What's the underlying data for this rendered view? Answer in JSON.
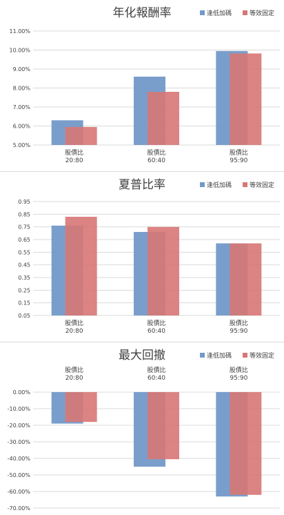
{
  "legend": {
    "series1": "逢低加碼",
    "series2": "等效固定"
  },
  "colors": {
    "series1": "#7399c9",
    "series2": "#d77775"
  },
  "chart_data": [
    {
      "type": "bar",
      "title": "年化報酬率",
      "categories": [
        [
          "股債比",
          "20:80"
        ],
        [
          "股債比",
          "60:40"
        ],
        [
          "股債比",
          "95:90"
        ]
      ],
      "series": [
        {
          "name": "逢低加碼",
          "values": [
            6.3,
            8.6,
            9.95
          ]
        },
        {
          "name": "等效固定",
          "values": [
            5.95,
            7.8,
            9.82
          ]
        }
      ],
      "ylim": [
        5,
        11
      ],
      "yticks": [
        "11.00%",
        "10.00%",
        "9.00%",
        "8.00%",
        "7.00%",
        "6.00%",
        "5.00%"
      ]
    },
    {
      "type": "bar",
      "title": "夏普比率",
      "categories": [
        [
          "股債比",
          "20:80"
        ],
        [
          "股債比",
          "60:40"
        ],
        [
          "股債比",
          "95:90"
        ]
      ],
      "series": [
        {
          "name": "逢低加碼",
          "values": [
            0.76,
            0.71,
            0.62
          ]
        },
        {
          "name": "等效固定",
          "values": [
            0.83,
            0.75,
            0.62
          ]
        }
      ],
      "ylim": [
        0.05,
        0.95
      ],
      "yticks": [
        "0.95",
        "0.85",
        "0.75",
        "0.65",
        "0.55",
        "0.45",
        "0.35",
        "0.25",
        "0.15",
        "0.05"
      ]
    },
    {
      "type": "bar",
      "title": "最大回撤",
      "categories": [
        [
          "股債比",
          "20:80"
        ],
        [
          "股債比",
          "60:40"
        ],
        [
          "股債比",
          "95:90"
        ]
      ],
      "series": [
        {
          "name": "逢低加碼",
          "values": [
            -19,
            -45,
            -63
          ]
        },
        {
          "name": "等效固定",
          "values": [
            -18,
            -40.5,
            -62
          ]
        }
      ],
      "ylim": [
        -70,
        0
      ],
      "yticks": [
        "0.00%",
        "-10.00%",
        "-20.00%",
        "-30.00%",
        "-40.00%",
        "-50.00%",
        "-60.00%",
        "-70.00%"
      ]
    }
  ]
}
